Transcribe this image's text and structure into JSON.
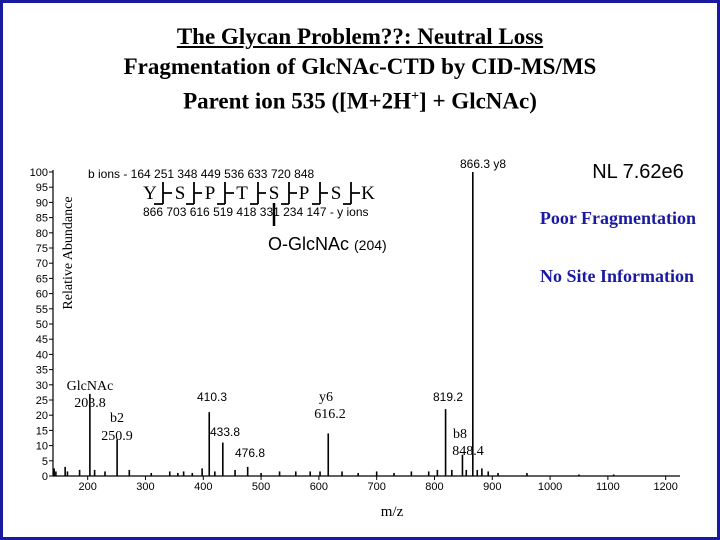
{
  "title": {
    "line1": "The Glycan Problem??: Neutral Loss",
    "line2": "Fragmentation of GlcNAc-CTD by CID-MS/MS",
    "line3_main": "Parent ion 535 ([M+2H",
    "line3_sup": "+",
    "line3_end": "] + GlcNAc)"
  },
  "nl_label": "NL 7.62e6",
  "sequence": {
    "b_ions": "b ions - 164  251  348  449  536  633  720  848",
    "residues": [
      "Y",
      "S",
      "P",
      "T",
      "S",
      "P",
      "S",
      "K"
    ],
    "y_ions": "866  703  616  519  418  331  234  147 - y ions",
    "glyco": "O-GlcNAc",
    "glyco_mass": "(204)"
  },
  "notes": {
    "poor": "Poor Fragmentation",
    "nosite": "No Site Information"
  },
  "colors": {
    "frame": "#1a1aa0",
    "note": "#1a1aa0",
    "spectrum": "#000000"
  },
  "chart_data": {
    "type": "bar",
    "xlabel": "m/z",
    "ylabel": "Relative Abundance",
    "xlim": [
      140,
      1200
    ],
    "ylim": [
      0,
      100
    ],
    "xticks": [
      200,
      300,
      400,
      500,
      600,
      700,
      800,
      900,
      1000,
      1100,
      1200
    ],
    "yticks": [
      0,
      5,
      10,
      15,
      20,
      25,
      30,
      35,
      40,
      45,
      50,
      55,
      60,
      65,
      70,
      75,
      80,
      85,
      90,
      95,
      100
    ],
    "peaks": [
      [
        142,
        2.5
      ],
      [
        145,
        1.5
      ],
      [
        161,
        3
      ],
      [
        165,
        1.5
      ],
      [
        186,
        2
      ],
      [
        203.8,
        27
      ],
      [
        212,
        2
      ],
      [
        230,
        1.5
      ],
      [
        250.9,
        12
      ],
      [
        272,
        2
      ],
      [
        310,
        1
      ],
      [
        342,
        1.5
      ],
      [
        356,
        1
      ],
      [
        366,
        1.5
      ],
      [
        381,
        1
      ],
      [
        398,
        2.5
      ],
      [
        410.3,
        21
      ],
      [
        420,
        1.5
      ],
      [
        433.8,
        11
      ],
      [
        455,
        2
      ],
      [
        476.8,
        3
      ],
      [
        500,
        1
      ],
      [
        532,
        1.5
      ],
      [
        560,
        1.5
      ],
      [
        585,
        1.5
      ],
      [
        602,
        1.5
      ],
      [
        616.2,
        14
      ],
      [
        640,
        1.5
      ],
      [
        668,
        1
      ],
      [
        700,
        1.5
      ],
      [
        730,
        1
      ],
      [
        760,
        1.5
      ],
      [
        790,
        1.5
      ],
      [
        805,
        2
      ],
      [
        819.2,
        22
      ],
      [
        830,
        2
      ],
      [
        848.4,
        7
      ],
      [
        855,
        2
      ],
      [
        866.3,
        100
      ],
      [
        874,
        2
      ],
      [
        882,
        2.5
      ],
      [
        893,
        1.5
      ],
      [
        910,
        1
      ],
      [
        960,
        1
      ],
      [
        1050,
        0.5
      ],
      [
        1110,
        0.5
      ]
    ],
    "peak_labels": [
      {
        "text": "GlcNAc",
        "x": 203.8
      },
      {
        "text": "203.8",
        "x": 203.8
      },
      {
        "text": "b2",
        "x": 250.9
      },
      {
        "text": "250.9",
        "x": 250.9
      },
      {
        "text": "410.3",
        "x": 410.3
      },
      {
        "text": "433.8",
        "x": 433.8
      },
      {
        "text": "476.8",
        "x": 476.8
      },
      {
        "text": "y6",
        "x": 616.2
      },
      {
        "text": "616.2",
        "x": 616.2
      },
      {
        "text": "819.2",
        "x": 819.2
      },
      {
        "text": "b8",
        "x": 848.4
      },
      {
        "text": "848.4",
        "x": 848.4
      },
      {
        "text": "866.3  y8",
        "x": 866.3
      }
    ]
  }
}
